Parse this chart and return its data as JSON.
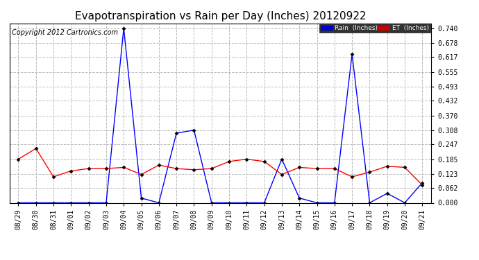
{
  "title": "Evapotranspiration vs Rain per Day (Inches) 20120922",
  "copyright": "Copyright 2012 Cartronics.com",
  "dates": [
    "08/29",
    "08/30",
    "08/31",
    "09/01",
    "09/02",
    "09/03",
    "09/04",
    "09/05",
    "09/06",
    "09/07",
    "09/08",
    "09/09",
    "09/10",
    "09/11",
    "09/12",
    "09/13",
    "09/14",
    "09/15",
    "09/16",
    "09/17",
    "09/18",
    "09/19",
    "09/20",
    "09/21"
  ],
  "rain": [
    0.0,
    0.0,
    0.0,
    0.0,
    0.0,
    0.0,
    0.74,
    0.02,
    0.0,
    0.295,
    0.308,
    0.0,
    0.0,
    0.0,
    0.0,
    0.185,
    0.02,
    0.0,
    0.0,
    0.63,
    0.0,
    0.04,
    0.0,
    0.085
  ],
  "et": [
    0.185,
    0.23,
    0.11,
    0.135,
    0.145,
    0.145,
    0.15,
    0.12,
    0.16,
    0.145,
    0.14,
    0.145,
    0.175,
    0.185,
    0.175,
    0.12,
    0.15,
    0.145,
    0.145,
    0.11,
    0.13,
    0.155,
    0.15,
    0.075
  ],
  "rain_color": "#0000ff",
  "et_color": "#ff0000",
  "background_color": "#ffffff",
  "grid_color": "#bbbbbb",
  "yticks": [
    0.0,
    0.062,
    0.123,
    0.185,
    0.247,
    0.308,
    0.37,
    0.432,
    0.493,
    0.555,
    0.617,
    0.678,
    0.74
  ],
  "ylim": [
    0.0,
    0.76
  ],
  "legend_rain_label": "Rain  (Inches)",
  "legend_rain_bg": "#0000cc",
  "legend_et_bg": "#cc0000",
  "title_fontsize": 11,
  "copyright_fontsize": 7,
  "tick_fontsize": 7,
  "marker": "D",
  "marker_size": 2.5,
  "line_width": 1.0
}
